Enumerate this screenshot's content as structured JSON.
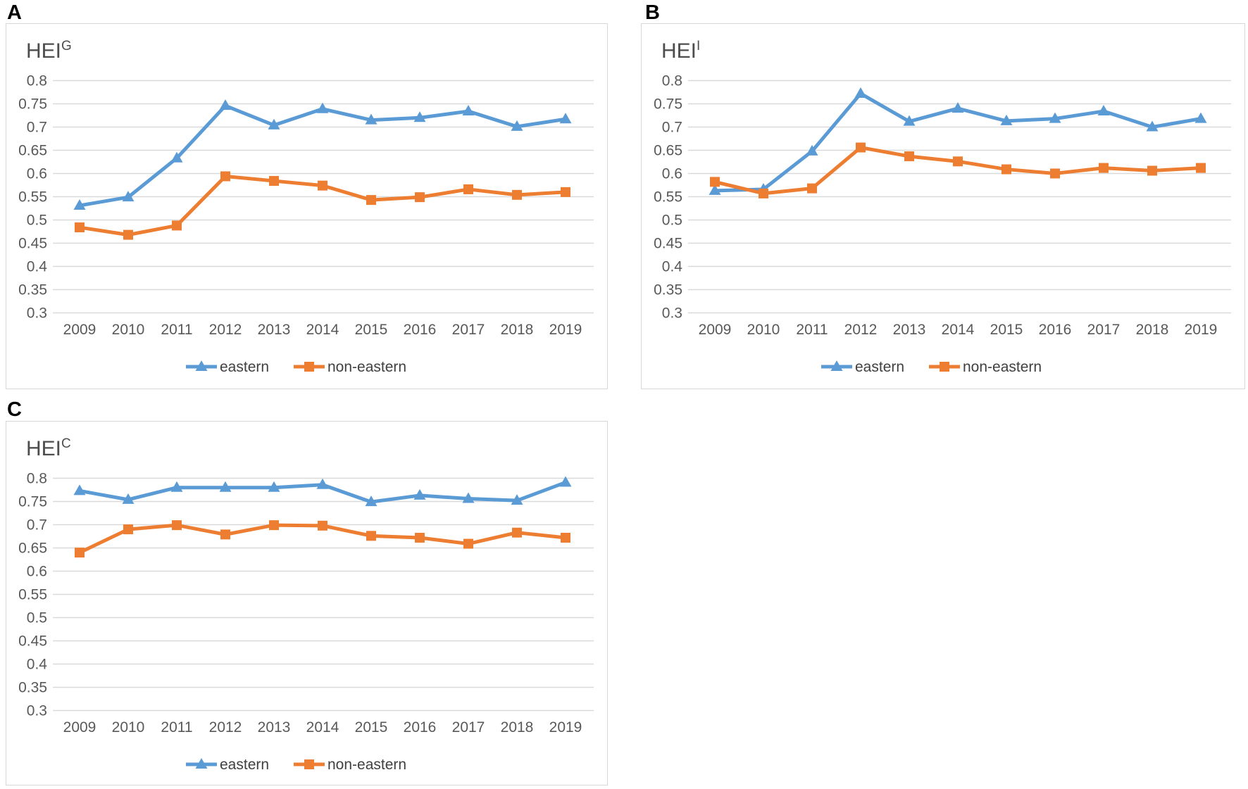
{
  "figure": {
    "background": "#ffffff",
    "panel_labels": [
      "A",
      "B",
      "C"
    ]
  },
  "palette": {
    "eastern_blue": "#5B9BD5",
    "non_eastern_orange": "#ED7D31",
    "gridline_gray": "#d9d9d9",
    "axis_text_gray": "#595959",
    "title_gray": "#4d4d4d",
    "panel_border_gray": "#d7d7d7",
    "panel_label_black": "#000000"
  },
  "chart_data": [
    {
      "type": "line",
      "panel_label": "A",
      "title": {
        "base": "HEI",
        "superscript": "G"
      },
      "categories": [
        "2009",
        "2010",
        "2011",
        "2012",
        "2013",
        "2014",
        "2015",
        "2016",
        "2017",
        "2018",
        "2019"
      ],
      "y_tick_labels": [
        "0.8",
        "0.75",
        "0.7",
        "0.65",
        "0.6",
        "0.55",
        "0.5",
        "0.45",
        "0.4",
        "0.35",
        "0.3"
      ],
      "ylim": [
        0.3,
        0.8
      ],
      "grid": true,
      "legend_position": "bottom-center",
      "series": [
        {
          "name": "eastern",
          "color": "#5B9BD5",
          "marker": "triangle",
          "values": [
            0.531,
            0.549,
            0.633,
            0.746,
            0.704,
            0.739,
            0.715,
            0.72,
            0.734,
            0.701,
            0.717
          ]
        },
        {
          "name": "non-eastern",
          "color": "#ED7D31",
          "marker": "square",
          "values": [
            0.484,
            0.468,
            0.488,
            0.594,
            0.584,
            0.574,
            0.543,
            0.549,
            0.566,
            0.554,
            0.56
          ]
        }
      ]
    },
    {
      "type": "line",
      "panel_label": "B",
      "title": {
        "base": "HEI",
        "superscript": "I"
      },
      "categories": [
        "2009",
        "2010",
        "2011",
        "2012",
        "2013",
        "2014",
        "2015",
        "2016",
        "2017",
        "2018",
        "2019"
      ],
      "y_tick_labels": [
        "0.8",
        "0.75",
        "0.7",
        "0.65",
        "0.6",
        "0.55",
        "0.5",
        "0.45",
        "0.4",
        "0.35",
        "0.3"
      ],
      "ylim": [
        0.3,
        0.8
      ],
      "grid": true,
      "legend_position": "bottom-center",
      "series": [
        {
          "name": "eastern",
          "color": "#5B9BD5",
          "marker": "triangle",
          "values": [
            0.563,
            0.566,
            0.648,
            0.772,
            0.712,
            0.74,
            0.713,
            0.718,
            0.734,
            0.7,
            0.718
          ]
        },
        {
          "name": "non-eastern",
          "color": "#ED7D31",
          "marker": "square",
          "values": [
            0.582,
            0.557,
            0.568,
            0.656,
            0.637,
            0.626,
            0.609,
            0.6,
            0.612,
            0.606,
            0.612
          ]
        }
      ]
    },
    {
      "type": "line",
      "panel_label": "C",
      "title": {
        "base": "HEI",
        "superscript": "C"
      },
      "categories": [
        "2009",
        "2010",
        "2011",
        "2012",
        "2013",
        "2014",
        "2015",
        "2016",
        "2017",
        "2018",
        "2019"
      ],
      "y_tick_labels": [
        "0.8",
        "0.75",
        "0.7",
        "0.65",
        "0.6",
        "0.55",
        "0.5",
        "0.45",
        "0.4",
        "0.35",
        "0.3"
      ],
      "ylim": [
        0.3,
        0.8
      ],
      "grid": true,
      "legend_position": "bottom-center",
      "series": [
        {
          "name": "eastern",
          "color": "#5B9BD5",
          "marker": "triangle",
          "values": [
            0.773,
            0.754,
            0.78,
            0.78,
            0.78,
            0.786,
            0.749,
            0.763,
            0.756,
            0.752,
            0.791
          ]
        },
        {
          "name": "non-eastern",
          "color": "#ED7D31",
          "marker": "square",
          "values": [
            0.64,
            0.69,
            0.699,
            0.679,
            0.699,
            0.698,
            0.676,
            0.672,
            0.659,
            0.683,
            0.672
          ]
        }
      ]
    }
  ],
  "legend": {
    "items": [
      {
        "label": "eastern",
        "color": "#5B9BD5",
        "marker": "triangle"
      },
      {
        "label": "non-eastern",
        "color": "#ED7D31",
        "marker": "square"
      }
    ]
  }
}
